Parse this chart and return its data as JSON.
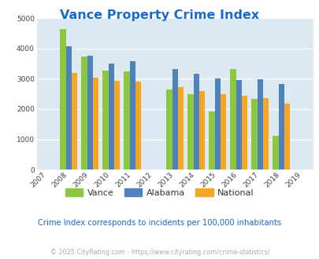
{
  "title": "Vance Property Crime Index",
  "title_color": "#1a6acc",
  "years": [
    2008,
    2009,
    2010,
    2011,
    2013,
    2014,
    2015,
    2016,
    2017,
    2018
  ],
  "vance": [
    4650,
    3730,
    3280,
    3240,
    2650,
    2490,
    1930,
    3310,
    2340,
    1130
  ],
  "alabama": [
    4080,
    3760,
    3490,
    3590,
    3330,
    3160,
    3000,
    2960,
    2970,
    2830
  ],
  "national": [
    3190,
    3040,
    2940,
    2900,
    2720,
    2600,
    2490,
    2440,
    2360,
    2190
  ],
  "vance_color": "#8dc63f",
  "alabama_color": "#4f81bd",
  "national_color": "#f5a623",
  "bg_color": "#dce9f0",
  "ylim": [
    0,
    5000
  ],
  "yticks": [
    0,
    1000,
    2000,
    3000,
    4000,
    5000
  ],
  "x_all_years": [
    2007,
    2008,
    2009,
    2010,
    2011,
    2012,
    2013,
    2014,
    2015,
    2016,
    2017,
    2018,
    2019
  ],
  "subtitle": "Crime Index corresponds to incidents per 100,000 inhabitants",
  "subtitle_color": "#1a6acc",
  "footer": "© 2025 CityRating.com - https://www.cityrating.com/crime-statistics/",
  "footer_color": "#aaaaaa",
  "bar_width": 0.27
}
